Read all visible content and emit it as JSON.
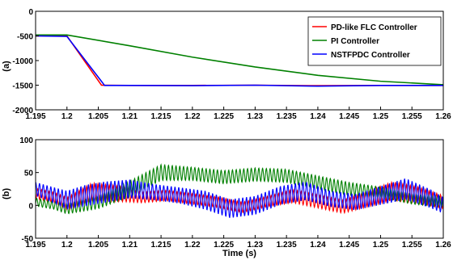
{
  "chart_data": [
    {
      "type": "line",
      "panel_label": "(a)",
      "xlim": [
        1.195,
        1.26
      ],
      "ylim": [
        -2000,
        0
      ],
      "xticks": [
        "1.195",
        "1.2",
        "1.205",
        "1.21",
        "1.215",
        "1.22",
        "1.225",
        "1.23",
        "1.235",
        "1.24",
        "1.245",
        "1.25",
        "1.255",
        "1.26"
      ],
      "yticks": [
        "0",
        "-500",
        "-1000",
        "-1500",
        "-2000"
      ],
      "grid": false,
      "legend": {
        "placement": "top-right",
        "entries": [
          "PD-like FLC Controller",
          "PI Controller",
          "NSTFPDC Controller"
        ]
      },
      "series": [
        {
          "name": "PD-like FLC Controller",
          "color": "#ff0000",
          "x": [
            1.195,
            1.2,
            1.2055,
            1.21,
            1.22,
            1.23,
            1.24,
            1.25,
            1.26
          ],
          "y": [
            -500,
            -500,
            -1500,
            -1505,
            -1505,
            -1500,
            -1510,
            -1505,
            -1505
          ]
        },
        {
          "name": "PI Controller",
          "color": "#008000",
          "x": [
            1.195,
            1.2,
            1.21,
            1.22,
            1.23,
            1.24,
            1.25,
            1.26
          ],
          "y": [
            -480,
            -480,
            -700,
            -930,
            -1130,
            -1300,
            -1420,
            -1490
          ]
        },
        {
          "name": "NSTFPDC Controller",
          "color": "#0000ff",
          "x": [
            1.195,
            1.2,
            1.206,
            1.21,
            1.22,
            1.23,
            1.24,
            1.25,
            1.26
          ],
          "y": [
            -500,
            -510,
            -1505,
            -1505,
            -1510,
            -1500,
            -1520,
            -1505,
            -1505
          ]
        }
      ]
    },
    {
      "type": "line",
      "panel_label": "(b)",
      "xlabel": "Time (s)",
      "xlim": [
        1.195,
        1.26
      ],
      "ylim": [
        -50,
        100
      ],
      "xticks": [
        "1.195",
        "1.2",
        "1.205",
        "1.21",
        "1.215",
        "1.22",
        "1.225",
        "1.23",
        "1.235",
        "1.24",
        "1.245",
        "1.25",
        "1.255",
        "1.26"
      ],
      "yticks": [
        "100",
        "50",
        "0",
        "-50"
      ],
      "grid": false,
      "series": [
        {
          "name": "PD-like FLC Controller",
          "color": "#ff0000",
          "x": [
            1.195,
            1.198,
            1.2,
            1.204,
            1.208,
            1.212,
            1.216,
            1.22,
            1.224,
            1.228,
            1.232,
            1.236,
            1.24,
            1.244,
            1.248,
            1.252,
            1.256,
            1.26
          ],
          "y": [
            18,
            12,
            2,
            20,
            18,
            12,
            15,
            10,
            5,
            -3,
            6,
            14,
            6,
            -2,
            10,
            22,
            16,
            5
          ],
          "amplitude": [
            8,
            8,
            10,
            14,
            12,
            8,
            8,
            8,
            8,
            8,
            8,
            10,
            10,
            10,
            12,
            14,
            12,
            10
          ]
        },
        {
          "name": "PI Controller",
          "color": "#008000",
          "x": [
            1.195,
            1.198,
            1.2,
            1.205,
            1.21,
            1.215,
            1.22,
            1.225,
            1.23,
            1.235,
            1.24,
            1.245,
            1.25,
            1.255,
            1.26
          ],
          "y": [
            5,
            0,
            -5,
            5,
            25,
            50,
            48,
            43,
            47,
            45,
            35,
            25,
            20,
            10,
            5
          ],
          "amplitude": [
            6,
            6,
            8,
            10,
            12,
            12,
            10,
            10,
            10,
            10,
            10,
            10,
            8,
            8,
            8
          ]
        },
        {
          "name": "NSTFPDC Controller",
          "color": "#0000ff",
          "x": [
            1.195,
            1.198,
            1.2,
            1.203,
            1.206,
            1.21,
            1.214,
            1.218,
            1.222,
            1.226,
            1.23,
            1.234,
            1.238,
            1.242,
            1.246,
            1.25,
            1.254,
            1.258,
            1.26
          ],
          "y": [
            25,
            15,
            8,
            15,
            20,
            25,
            20,
            15,
            8,
            -5,
            0,
            15,
            22,
            10,
            5,
            15,
            25,
            10,
            0
          ],
          "amplitude": [
            10,
            12,
            14,
            16,
            16,
            14,
            12,
            12,
            14,
            14,
            14,
            14,
            14,
            12,
            12,
            14,
            16,
            14,
            12
          ]
        }
      ]
    }
  ]
}
